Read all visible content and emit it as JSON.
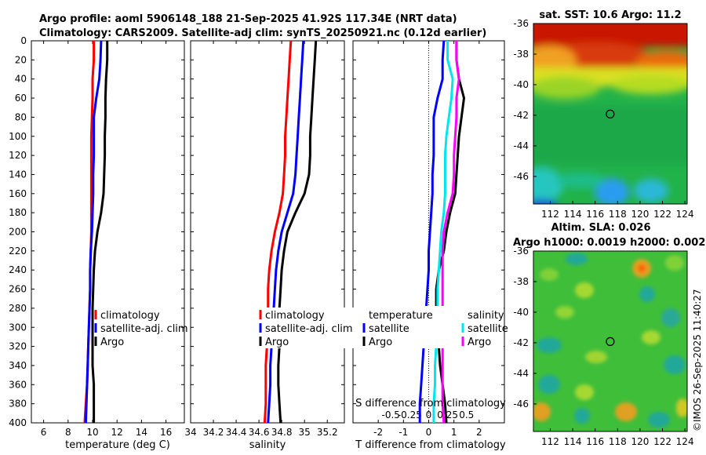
{
  "title": {
    "line1": "Argo profile: aoml 5906148_188 21-Sep-2025 41.92S 117.34E (NRT data)",
    "line2": "Climatology: CARS2009. Satellite-adj clim: synTS_20250921.nc (0.12d earlier)"
  },
  "depth_ticks": [
    "0",
    "20",
    "40",
    "60",
    "80",
    "100",
    "120",
    "140",
    "160",
    "180",
    "200",
    "220",
    "240",
    "260",
    "280",
    "300",
    "320",
    "340",
    "360",
    "380",
    "400"
  ],
  "colors": {
    "climatology": "#ff0000",
    "satellite": "#0000ff",
    "argo": "#000000",
    "sat_salinity": "#00e5ee",
    "argo_salinity": "#ff00ff"
  },
  "chart_data": [
    {
      "type": "line",
      "panel": "temperature",
      "xlabel": "temperature (deg C)",
      "xlim": [
        5,
        17.5
      ],
      "ylim": [
        400,
        0
      ],
      "xticks": [
        "6",
        "8",
        "10",
        "12",
        "14",
        "16"
      ],
      "xtick_values": [
        6,
        8,
        10,
        12,
        14,
        16
      ],
      "depth": [
        0,
        20,
        40,
        60,
        80,
        100,
        120,
        140,
        160,
        180,
        200,
        220,
        240,
        260,
        280,
        300,
        320,
        340,
        360,
        380,
        400
      ],
      "series": [
        {
          "name": "climatology",
          "color": "#ff0000",
          "values": [
            10.1,
            10.1,
            10.0,
            10.0,
            9.95,
            9.9,
            9.9,
            9.9,
            9.9,
            9.9,
            9.9,
            9.85,
            9.8,
            9.8,
            9.75,
            9.7,
            9.65,
            9.6,
            9.55,
            9.45,
            9.35
          ]
        },
        {
          "name": "satellite-adj. clim",
          "color": "#0000ff",
          "values": [
            10.7,
            10.65,
            10.55,
            10.3,
            10.1,
            10.1,
            10.1,
            10.05,
            10.05,
            10.0,
            9.95,
            9.85,
            9.8,
            9.8,
            9.75,
            9.7,
            9.65,
            9.6,
            9.55,
            9.5,
            9.45
          ]
        },
        {
          "name": "Argo",
          "color": "#000000",
          "values": [
            11.2,
            11.2,
            11.1,
            11.05,
            11.05,
            11.0,
            11.0,
            10.95,
            10.9,
            10.7,
            10.4,
            10.2,
            10.1,
            10.05,
            10.0,
            10.0,
            10.0,
            10.0,
            10.1,
            10.1,
            10.1
          ]
        }
      ],
      "legend": [
        "climatology",
        "satellite-adj. clim",
        "Argo"
      ]
    },
    {
      "type": "line",
      "panel": "salinity",
      "xlabel": "salinity",
      "xlim": [
        34.0,
        35.35
      ],
      "ylim": [
        400,
        0
      ],
      "xticks": [
        "34",
        "34.2",
        "34.4",
        "34.6",
        "34.8",
        "35",
        "35.2"
      ],
      "xtick_values": [
        34.0,
        34.2,
        34.4,
        34.6,
        34.8,
        35.0,
        35.2
      ],
      "depth": [
        0,
        20,
        40,
        60,
        80,
        100,
        120,
        140,
        160,
        180,
        200,
        220,
        240,
        260,
        280,
        300,
        320,
        340,
        360,
        380,
        400
      ],
      "series": [
        {
          "name": "climatology",
          "color": "#ff0000",
          "values": [
            34.88,
            34.87,
            34.86,
            34.85,
            34.84,
            34.83,
            34.83,
            34.82,
            34.81,
            34.78,
            34.74,
            34.71,
            34.69,
            34.68,
            34.68,
            34.67,
            34.67,
            34.66,
            34.66,
            34.66,
            34.65
          ]
        },
        {
          "name": "satellite-adj. clim",
          "color": "#0000ff",
          "values": [
            34.99,
            34.98,
            34.97,
            34.96,
            34.95,
            34.94,
            34.93,
            34.92,
            34.9,
            34.85,
            34.8,
            34.77,
            34.75,
            34.74,
            34.73,
            34.72,
            34.71,
            34.7,
            34.7,
            34.69,
            34.68
          ]
        },
        {
          "name": "Argo",
          "color": "#000000",
          "values": [
            35.1,
            35.09,
            35.08,
            35.07,
            35.06,
            35.05,
            35.05,
            35.04,
            35.0,
            34.92,
            34.85,
            34.82,
            34.8,
            34.79,
            34.78,
            34.78,
            34.78,
            34.77,
            34.77,
            34.78,
            34.79
          ]
        }
      ],
      "legend": [
        "climatology",
        "satellite-adj. clim",
        "Argo"
      ]
    },
    {
      "type": "line",
      "panel": "difference",
      "xlabel": "T difference from climatology",
      "xlabel_top": "S difference from climatology",
      "xlim": [
        -3,
        3
      ],
      "ylim": [
        400,
        0
      ],
      "xticks": [
        "-2",
        "-1",
        "0",
        "1",
        "2"
      ],
      "xtick_values": [
        -2,
        -1,
        0,
        1,
        2
      ],
      "s_xticks": [
        "-0.5",
        "-0.25",
        "0",
        "0.25",
        "0.5"
      ],
      "s_xtick_values": [
        -0.5,
        -0.25,
        0,
        0.25,
        0.5
      ],
      "depth": [
        0,
        20,
        40,
        60,
        80,
        100,
        120,
        140,
        160,
        180,
        200,
        220,
        240,
        260,
        280,
        300,
        320,
        340,
        360,
        380,
        400
      ],
      "series": [
        {
          "name": "temperature satellite",
          "color": "#0000ff",
          "values": [
            0.6,
            0.55,
            0.55,
            0.35,
            0.2,
            0.2,
            0.2,
            0.15,
            0.15,
            0.1,
            0.05,
            0.0,
            0.0,
            -0.05,
            -0.1,
            -0.15,
            -0.2,
            -0.25,
            -0.3,
            -0.35,
            -0.35
          ]
        },
        {
          "name": "temperature Argo",
          "color": "#000000",
          "values": [
            1.1,
            1.1,
            1.2,
            1.4,
            1.3,
            1.2,
            1.15,
            1.1,
            1.05,
            0.85,
            0.7,
            0.6,
            0.4,
            0.3,
            0.3,
            0.35,
            0.4,
            0.45,
            0.55,
            0.65,
            0.7
          ]
        },
        {
          "name": "salinity satellite",
          "color": "#00e5ee",
          "values": [
            0.75,
            0.75,
            0.95,
            0.9,
            0.8,
            0.7,
            0.65,
            0.65,
            0.65,
            0.6,
            0.5,
            0.45,
            0.4,
            0.35,
            0.35,
            0.3,
            0.3,
            0.25,
            0.25,
            0.2,
            0.2
          ]
        },
        {
          "name": "salinity Argo",
          "color": "#ff00ff",
          "values": [
            1.1,
            1.1,
            1.2,
            1.1,
            1.1,
            1.05,
            1.0,
            1.0,
            0.95,
            0.75,
            0.6,
            0.55,
            0.55,
            0.55,
            0.55,
            0.55,
            0.55,
            0.55,
            0.55,
            0.55,
            0.6
          ]
        }
      ],
      "legend_temperature": {
        "title": "temperature",
        "items": [
          "satellite",
          "Argo"
        ]
      },
      "legend_salinity": {
        "title": "salinity",
        "items": [
          "satellite",
          "Argo"
        ]
      }
    },
    {
      "type": "heatmap",
      "panel": "sst_map",
      "title": "sat. SST: 10.6 Argo: 11.2",
      "xlim": [
        110.5,
        124.2
      ],
      "ylim": [
        -47.8,
        -36
      ],
      "xticks": [
        "112",
        "114",
        "116",
        "118",
        "120",
        "122",
        "124"
      ],
      "xtick_values": [
        112,
        114,
        116,
        118,
        120,
        122,
        124
      ],
      "yticks": [
        "-36",
        "-38",
        "-40",
        "-42",
        "-44",
        "-46"
      ],
      "ytick_values": [
        -36,
        -38,
        -40,
        -42,
        -44,
        -46
      ],
      "argo_position": {
        "lon": 117.34,
        "lat": -41.92
      }
    },
    {
      "type": "heatmap",
      "panel": "sla_map",
      "title_line1": "Altim. SLA: 0.026",
      "title_line2": "Argo h1000: 0.0019 h2000: 0.002",
      "xlim": [
        110.5,
        124.2
      ],
      "ylim": [
        -47.8,
        -36
      ],
      "xticks": [
        "112",
        "114",
        "116",
        "118",
        "120",
        "122",
        "124"
      ],
      "xtick_values": [
        112,
        114,
        116,
        118,
        120,
        122,
        124
      ],
      "yticks": [
        "-36",
        "-38",
        "-40",
        "-42",
        "-44",
        "-46"
      ],
      "ytick_values": [
        -36,
        -38,
        -40,
        -42,
        -44,
        -46
      ],
      "argo_position": {
        "lon": 117.34,
        "lat": -41.92
      }
    }
  ],
  "watermark": "©IMOS 26-Sep-2025 11:40:27"
}
